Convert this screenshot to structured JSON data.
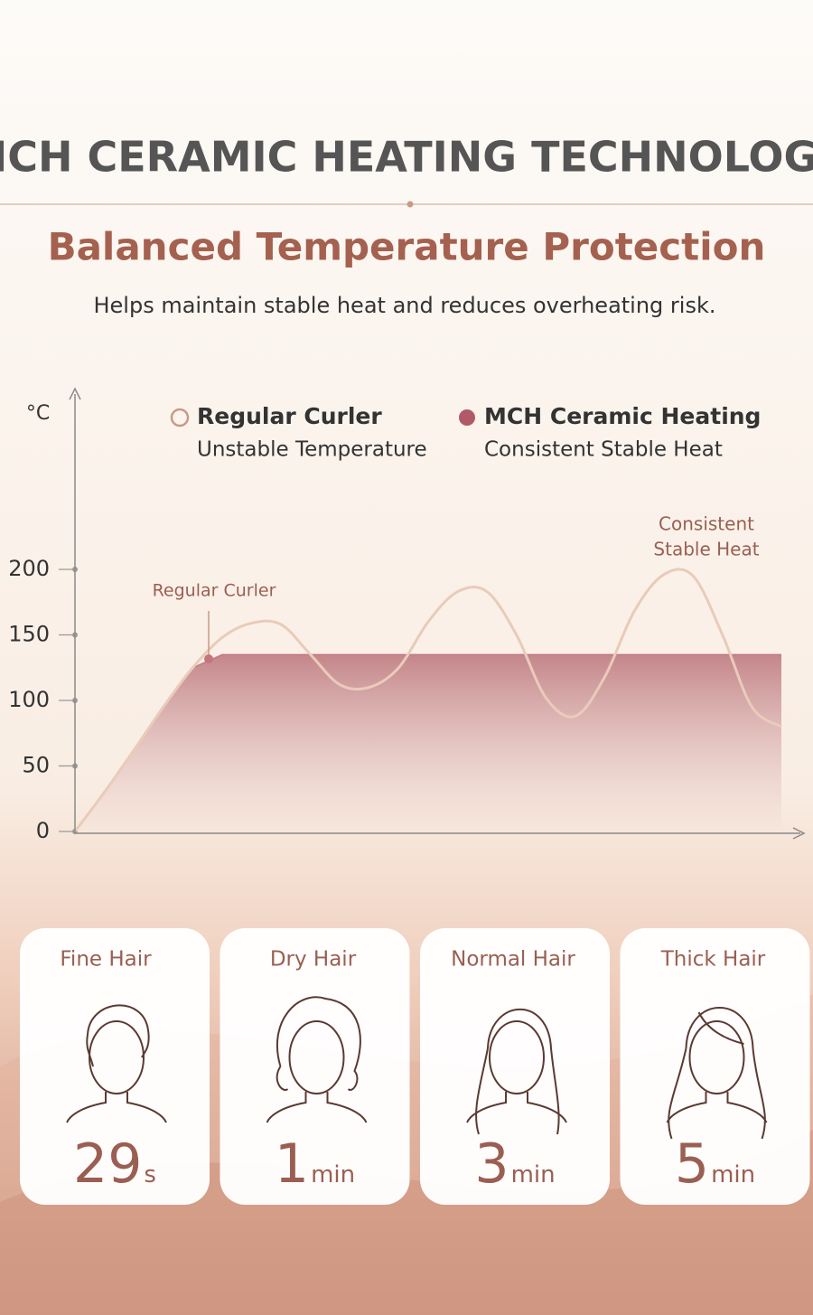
{
  "header": {
    "title": "MCH CERAMIC HEATING TECHNOLOGY",
    "subtitle": "Balanced Temperature Protection",
    "description": "Helps maintain stable heat and reduces overheating risk."
  },
  "chart_data": {
    "type": "line",
    "y_label": "°C",
    "categories": [
      null,
      null,
      null,
      null,
      null,
      null,
      null,
      null,
      null,
      null,
      null,
      null,
      null,
      null,
      null,
      null,
      null,
      null,
      null,
      null,
      null,
      null,
      null,
      null,
      null
    ],
    "series": [
      {
        "name": "Regular Curler",
        "description": "Unstable Temperature",
        "color": "#e9cbbb",
        "values": [
          0,
          30,
          62,
          95,
          125,
          148,
          159,
          158,
          135,
          112,
          110,
          125,
          160,
          183,
          183,
          150,
          102,
          88,
          118,
          168,
          196,
          195,
          150,
          95,
          80
        ]
      },
      {
        "name": "MCH Ceramic Heating",
        "description": "Consistent Stable Heat",
        "color": "#b05a68",
        "values": [
          0,
          30,
          62,
          95,
          125,
          135,
          135,
          135,
          135,
          135,
          135,
          135,
          135,
          135,
          135,
          135,
          135,
          135,
          135,
          135,
          135,
          135,
          135,
          135,
          135
        ]
      }
    ],
    "ylim": [
      0,
      200
    ],
    "yticks": [
      0,
      50,
      100,
      150,
      200
    ],
    "annotations": [
      {
        "text": "Regular Curler"
      },
      {
        "lines": [
          "Consistent",
          "Stable Heat"
        ]
      }
    ]
  },
  "cards": [
    {
      "label": "Fine Hair",
      "value": 29,
      "unit": "s"
    },
    {
      "label": "Dry Hair",
      "value": 1,
      "unit": "min"
    },
    {
      "label": "Normal Hair",
      "value": 3,
      "unit": "min"
    },
    {
      "label": "Thick Hair",
      "value": 5,
      "unit": "min"
    }
  ]
}
